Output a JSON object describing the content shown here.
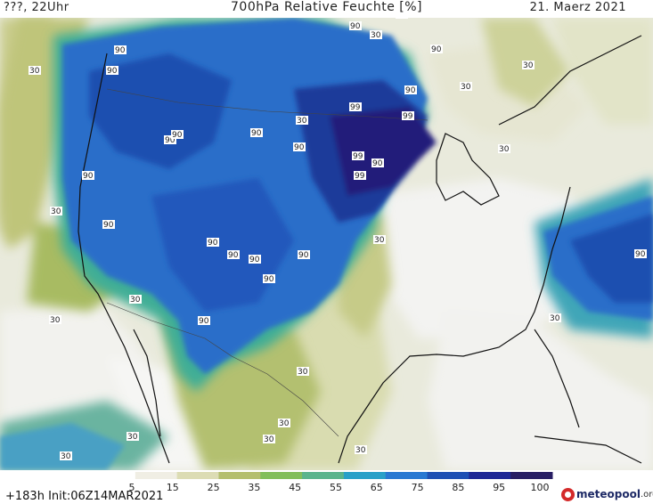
{
  "header": {
    "left": "???, 22Uhr",
    "center": "700hPa Relative Feuchte [%]",
    "right": "21. Maerz 2021"
  },
  "footer": {
    "run_info": "+183h  Init:06Z14MAR2021"
  },
  "logo": {
    "text": "meteopool",
    "tld": ".org"
  },
  "colorbar": {
    "labels": [
      "5",
      "15",
      "25",
      "35",
      "45",
      "55",
      "65",
      "75",
      "85",
      "95",
      "100"
    ],
    "colors": [
      "#ffffff",
      "#f0eee4",
      "#dcdcb4",
      "#b4be6e",
      "#82be5a",
      "#5ab48c",
      "#28a0c8",
      "#2878d2",
      "#1e50b4",
      "#1e2896",
      "#281e64"
    ]
  },
  "contour_labels": {
    "moist": [
      "90",
      "90",
      "90",
      "90",
      "90",
      "90",
      "90",
      "90",
      "90",
      "90",
      "90",
      "90",
      "90",
      "90",
      "90",
      "90",
      "90",
      "90",
      "99",
      "99",
      "99",
      "99",
      "90",
      "99"
    ],
    "dry": [
      "30",
      "30",
      "30",
      "30",
      "30",
      "30",
      "30",
      "30",
      "30",
      "30",
      "30",
      "30",
      "30",
      "30",
      "30",
      "30",
      "30"
    ]
  }
}
